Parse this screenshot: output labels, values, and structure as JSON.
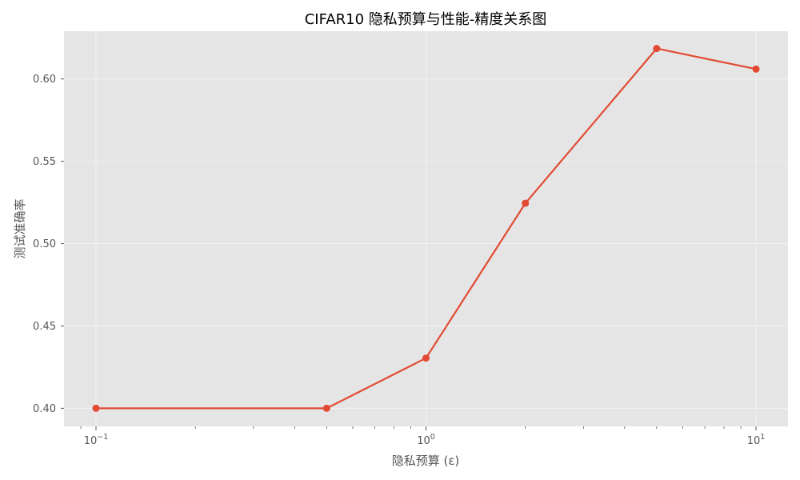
{
  "chart_data": {
    "type": "line",
    "title": "CIFAR10 隐私预算与性能-精度关系图",
    "xlabel": "隐私预算 (ε)",
    "ylabel": "测试准确率",
    "x_scale": "log",
    "xlim": [
      0.08,
      12.5
    ],
    "ylim": [
      0.389,
      0.629
    ],
    "grid": true,
    "x_major_ticks": [
      {
        "value": 0.1,
        "base": "10",
        "exp": "−1"
      },
      {
        "value": 1,
        "base": "10",
        "exp": "0"
      },
      {
        "value": 10,
        "base": "10",
        "exp": "1"
      }
    ],
    "y_ticks": [
      0.4,
      0.45,
      0.5,
      0.55,
      0.6
    ],
    "y_tick_labels": [
      "0.40",
      "0.45",
      "0.50",
      "0.55",
      "0.60"
    ],
    "series": [
      {
        "x": [
          0.1,
          0.5,
          1,
          2,
          5,
          10
        ],
        "values": [
          0.4,
          0.4,
          0.4305,
          0.5245,
          0.6185,
          0.606
        ],
        "color": "#E24A33"
      }
    ]
  },
  "colors": {
    "plot_background": "#E5E5E5",
    "grid": "#F2F2F2",
    "line": "#E24A33",
    "tick_text": "#555555"
  }
}
